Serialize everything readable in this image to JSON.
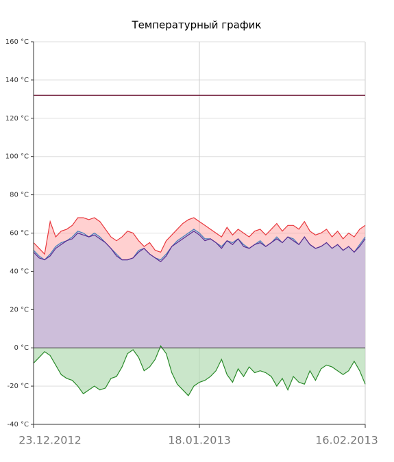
{
  "chart_data": {
    "type": "area-line",
    "title": "Температурный график",
    "categories": [
      "23.12.2012",
      null,
      null,
      null,
      null,
      null,
      null,
      null,
      null,
      null,
      null,
      null,
      null,
      null,
      null,
      null,
      null,
      null,
      null,
      null,
      null,
      null,
      null,
      null,
      null,
      null,
      null,
      null,
      null,
      null,
      "18.01.2013",
      null,
      null,
      null,
      null,
      null,
      null,
      null,
      null,
      null,
      null,
      null,
      null,
      null,
      null,
      null,
      null,
      null,
      null,
      null,
      null,
      null,
      null,
      null,
      null,
      null,
      null,
      null,
      null,
      null,
      "16.02.2013"
    ],
    "series": [
      {
        "color": "#e8383d",
        "fill": "rgba(255,120,120,0.35)",
        "values": [
          55,
          52,
          49,
          66,
          58,
          61,
          62,
          64,
          68,
          68,
          67,
          68,
          66,
          62,
          58,
          56,
          58,
          61,
          60,
          56,
          53,
          55,
          51,
          50,
          56,
          59,
          62,
          65,
          67,
          68,
          66,
          64,
          62,
          60,
          58,
          63,
          59,
          62,
          60,
          58,
          61,
          62,
          59,
          62,
          65,
          61,
          64,
          64,
          62,
          66,
          61,
          59,
          60,
          62,
          58,
          61,
          57,
          60,
          58,
          62,
          64
        ]
      },
      {
        "color": "#4a7ebb",
        "fill": "rgba(160,190,225,0.5)",
        "values": [
          51,
          48,
          46,
          49,
          53,
          55,
          56,
          58,
          61,
          60,
          58,
          60,
          58,
          55,
          52,
          49,
          46,
          46,
          47,
          51,
          52,
          49,
          47,
          46,
          49,
          53,
          56,
          58,
          60,
          62,
          60,
          57,
          57,
          55,
          53,
          56,
          55,
          57,
          54,
          52,
          54,
          56,
          53,
          55,
          58,
          55,
          58,
          57,
          54,
          58,
          54,
          52,
          53,
          55,
          52,
          54,
          51,
          53,
          50,
          54,
          58
        ]
      },
      {
        "color": "#5b2a8f",
        "fill": "rgba(205,190,218,1)",
        "values": [
          50,
          47,
          46,
          48,
          52,
          54,
          56,
          57,
          60,
          59,
          58,
          59,
          57,
          55,
          52,
          48,
          46,
          46,
          47,
          50,
          52,
          49,
          47,
          45,
          48,
          53,
          55,
          57,
          59,
          61,
          59,
          56,
          57,
          55,
          52,
          56,
          54,
          57,
          53,
          52,
          54,
          55,
          53,
          55,
          57,
          55,
          58,
          56,
          54,
          58,
          54,
          52,
          53,
          55,
          52,
          54,
          51,
          53,
          50,
          53,
          57
        ]
      },
      {
        "color": "#2a8a2a",
        "fill": "rgba(180,220,180,0.7)",
        "values": [
          -8,
          -5,
          -2,
          -4,
          -9,
          -14,
          -16,
          -17,
          -20,
          -24,
          -22,
          -20,
          -22,
          -21,
          -16,
          -15,
          -10,
          -3,
          -1,
          -5,
          -12,
          -10,
          -6,
          1,
          -3,
          -13,
          -19,
          -22,
          -25,
          -20,
          -18,
          -17,
          -15,
          -12,
          -6,
          -14,
          -18,
          -11,
          -15,
          -10,
          -13,
          -12,
          -13,
          -15,
          -20,
          -16,
          -22,
          -15,
          -18,
          -19,
          -12,
          -17,
          -11,
          -9,
          -10,
          -12,
          -14,
          -12,
          -7,
          -12,
          -19
        ]
      }
    ],
    "reference_line": {
      "value": 132,
      "color": "#6a1030"
    },
    "ylim": [
      -40,
      160
    ],
    "yticks": [
      {
        "value": -40,
        "label": "-40 °C"
      },
      {
        "value": -20,
        "label": "-20 °C"
      },
      {
        "value": 0,
        "label": "0 °C"
      },
      {
        "value": 20,
        "label": "20 °C"
      },
      {
        "value": 40,
        "label": "40 °C"
      },
      {
        "value": 60,
        "label": "60 °C"
      },
      {
        "value": 80,
        "label": "80 °C"
      },
      {
        "value": 100,
        "label": "100 °C"
      },
      {
        "value": 120,
        "label": "120 °C"
      },
      {
        "value": 140,
        "label": "140 °C"
      },
      {
        "value": 160,
        "label": "160 °C"
      }
    ],
    "grid": true
  }
}
